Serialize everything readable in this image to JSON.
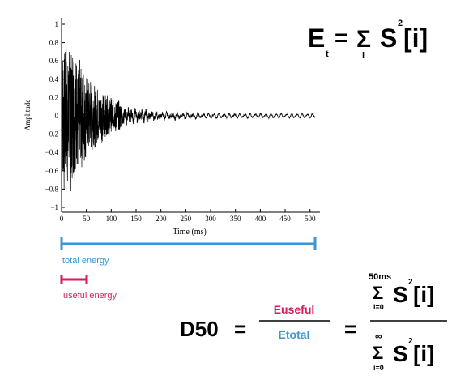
{
  "chart_data": {
    "type": "line",
    "xlabel": "Time (ms)",
    "ylabel": "Amplitude",
    "xlim": [
      0,
      520
    ],
    "ylim": [
      -1,
      1
    ],
    "x_ticks": [
      "0",
      "50",
      "100",
      "150",
      "200",
      "250",
      "300",
      "350",
      "400",
      "450",
      "500"
    ],
    "y_ticks": [
      "1",
      "0.8",
      "0.6",
      "0.4",
      "0.2",
      "0",
      "−0.2",
      "−0.4",
      "−0.6",
      "−0.8",
      "−1"
    ],
    "grid": false,
    "series": [
      {
        "description_hidden": false,
        "envelope_points_ms": [
          0,
          10,
          25,
          50,
          75,
          100,
          150,
          200,
          300,
          400,
          510
        ],
        "envelope_amplitude": [
          0.98,
          1.0,
          0.9,
          0.55,
          0.38,
          0.25,
          0.12,
          0.06,
          0.03,
          0.02,
          0.015
        ]
      }
    ]
  },
  "formula_top": {
    "E": "E",
    "t": "t",
    "eq": "=",
    "sigma": "Σ",
    "i": "i",
    "S": "S",
    "two": "2",
    "bracket_i": "[i]"
  },
  "bars": {
    "total_label": "total energy",
    "useful_label": "useful energy",
    "total_color": "#3b97cf",
    "useful_color": "#d81b60"
  },
  "formula_bottom": {
    "d50": "D50",
    "eq1": "=",
    "numerator": "Euseful",
    "denominator": "Etotal",
    "eq2": "=",
    "num_upper": "50ms",
    "num_sigma": "Σ",
    "num_lower": "i=0",
    "num_S": "S",
    "num_two": "2",
    "num_bracket": "[i]",
    "den_upper": "∞",
    "den_sigma": "Σ",
    "den_lower": "i=0",
    "den_S": "S",
    "den_two": "2",
    "den_bracket": "[i]"
  }
}
